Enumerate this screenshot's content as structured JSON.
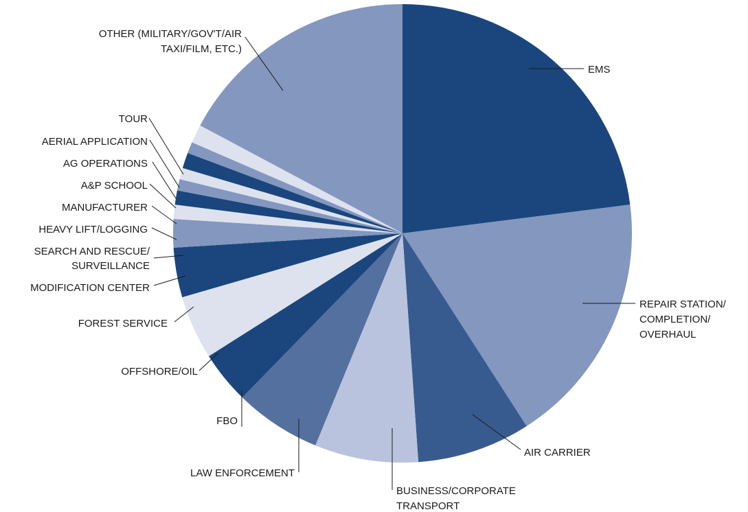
{
  "chart_data": {
    "type": "pie",
    "title": "",
    "unit": "share of respondents (%)",
    "start_angle_deg": 0,
    "direction": "clockwise",
    "slices": [
      {
        "label": "EMS",
        "value": 23.0,
        "color": "#1a467d"
      },
      {
        "label": "REPAIR STATION/ COMPLETION/ OVERHAUL",
        "value": 17.9,
        "color": "#8397bf"
      },
      {
        "label": "AIR CARRIER",
        "value": 8.0,
        "color": "#385b8f"
      },
      {
        "label": "BUSINESS/CORPORATE TRANSPORT",
        "value": 7.3,
        "color": "#bac3dd"
      },
      {
        "label": "LAW ENFORCEMENT",
        "value": 6.1,
        "color": "#54709f"
      },
      {
        "label": "FBO",
        "value": 3.7,
        "color": "#1a467d"
      },
      {
        "label": "OFFSHORE/OIL",
        "value": 4.5,
        "color": "#dde2ee"
      },
      {
        "label": "FOREST SERVICE",
        "value": 3.5,
        "color": "#1a467d"
      },
      {
        "label": "MODIFICATION CENTER",
        "value": 2.0,
        "color": "#8397bf"
      },
      {
        "label": "SEARCH AND RESCUE/ SURVEILLANCE",
        "value": 1.0,
        "color": "#dde2ee"
      },
      {
        "label": "HEAVY LIFT/LOGGING",
        "value": 1.0,
        "color": "#1a467d"
      },
      {
        "label": "MANUFACTURER",
        "value": 0.8,
        "color": "#8397bf"
      },
      {
        "label": "A&P SCHOOL",
        "value": 0.8,
        "color": "#dde2ee"
      },
      {
        "label": "AG OPERATIONS",
        "value": 1.1,
        "color": "#1a467d"
      },
      {
        "label": "AERIAL APPLICATION",
        "value": 0.8,
        "color": "#8397bf"
      },
      {
        "label": "TOUR",
        "value": 1.3,
        "color": "#dde2ee"
      },
      {
        "label": "OTHER (MILITARY/GOV'T/AIR TAXI/FILM, ETC.)",
        "value": 17.2,
        "color": "#8397bf"
      }
    ]
  },
  "labels": {
    "ems": "EMS",
    "repair_1": "REPAIR STATION/",
    "repair_2": "COMPLETION/",
    "repair_3": "OVERHAUL",
    "air_carrier": "AIR CARRIER",
    "business_1": "BUSINESS/CORPORATE",
    "business_2": "TRANSPORT",
    "law": "LAW ENFORCEMENT",
    "fbo": "FBO",
    "offshore": "OFFSHORE/OIL",
    "forest": "FOREST SERVICE",
    "modification": "MODIFICATION CENTER",
    "sar_1": "SEARCH AND RESCUE/",
    "sar_2": "SURVEILLANCE",
    "heavy": "HEAVY LIFT/LOGGING",
    "manufacturer": "MANUFACTURER",
    "ap": "A&P SCHOOL",
    "ag": "AG OPERATIONS",
    "aerial": "AERIAL APPLICATION",
    "tour": "TOUR",
    "other_1": "OTHER (MILITARY/GOV'T/AIR",
    "other_2": "TAXI/FILM, ETC.)"
  }
}
